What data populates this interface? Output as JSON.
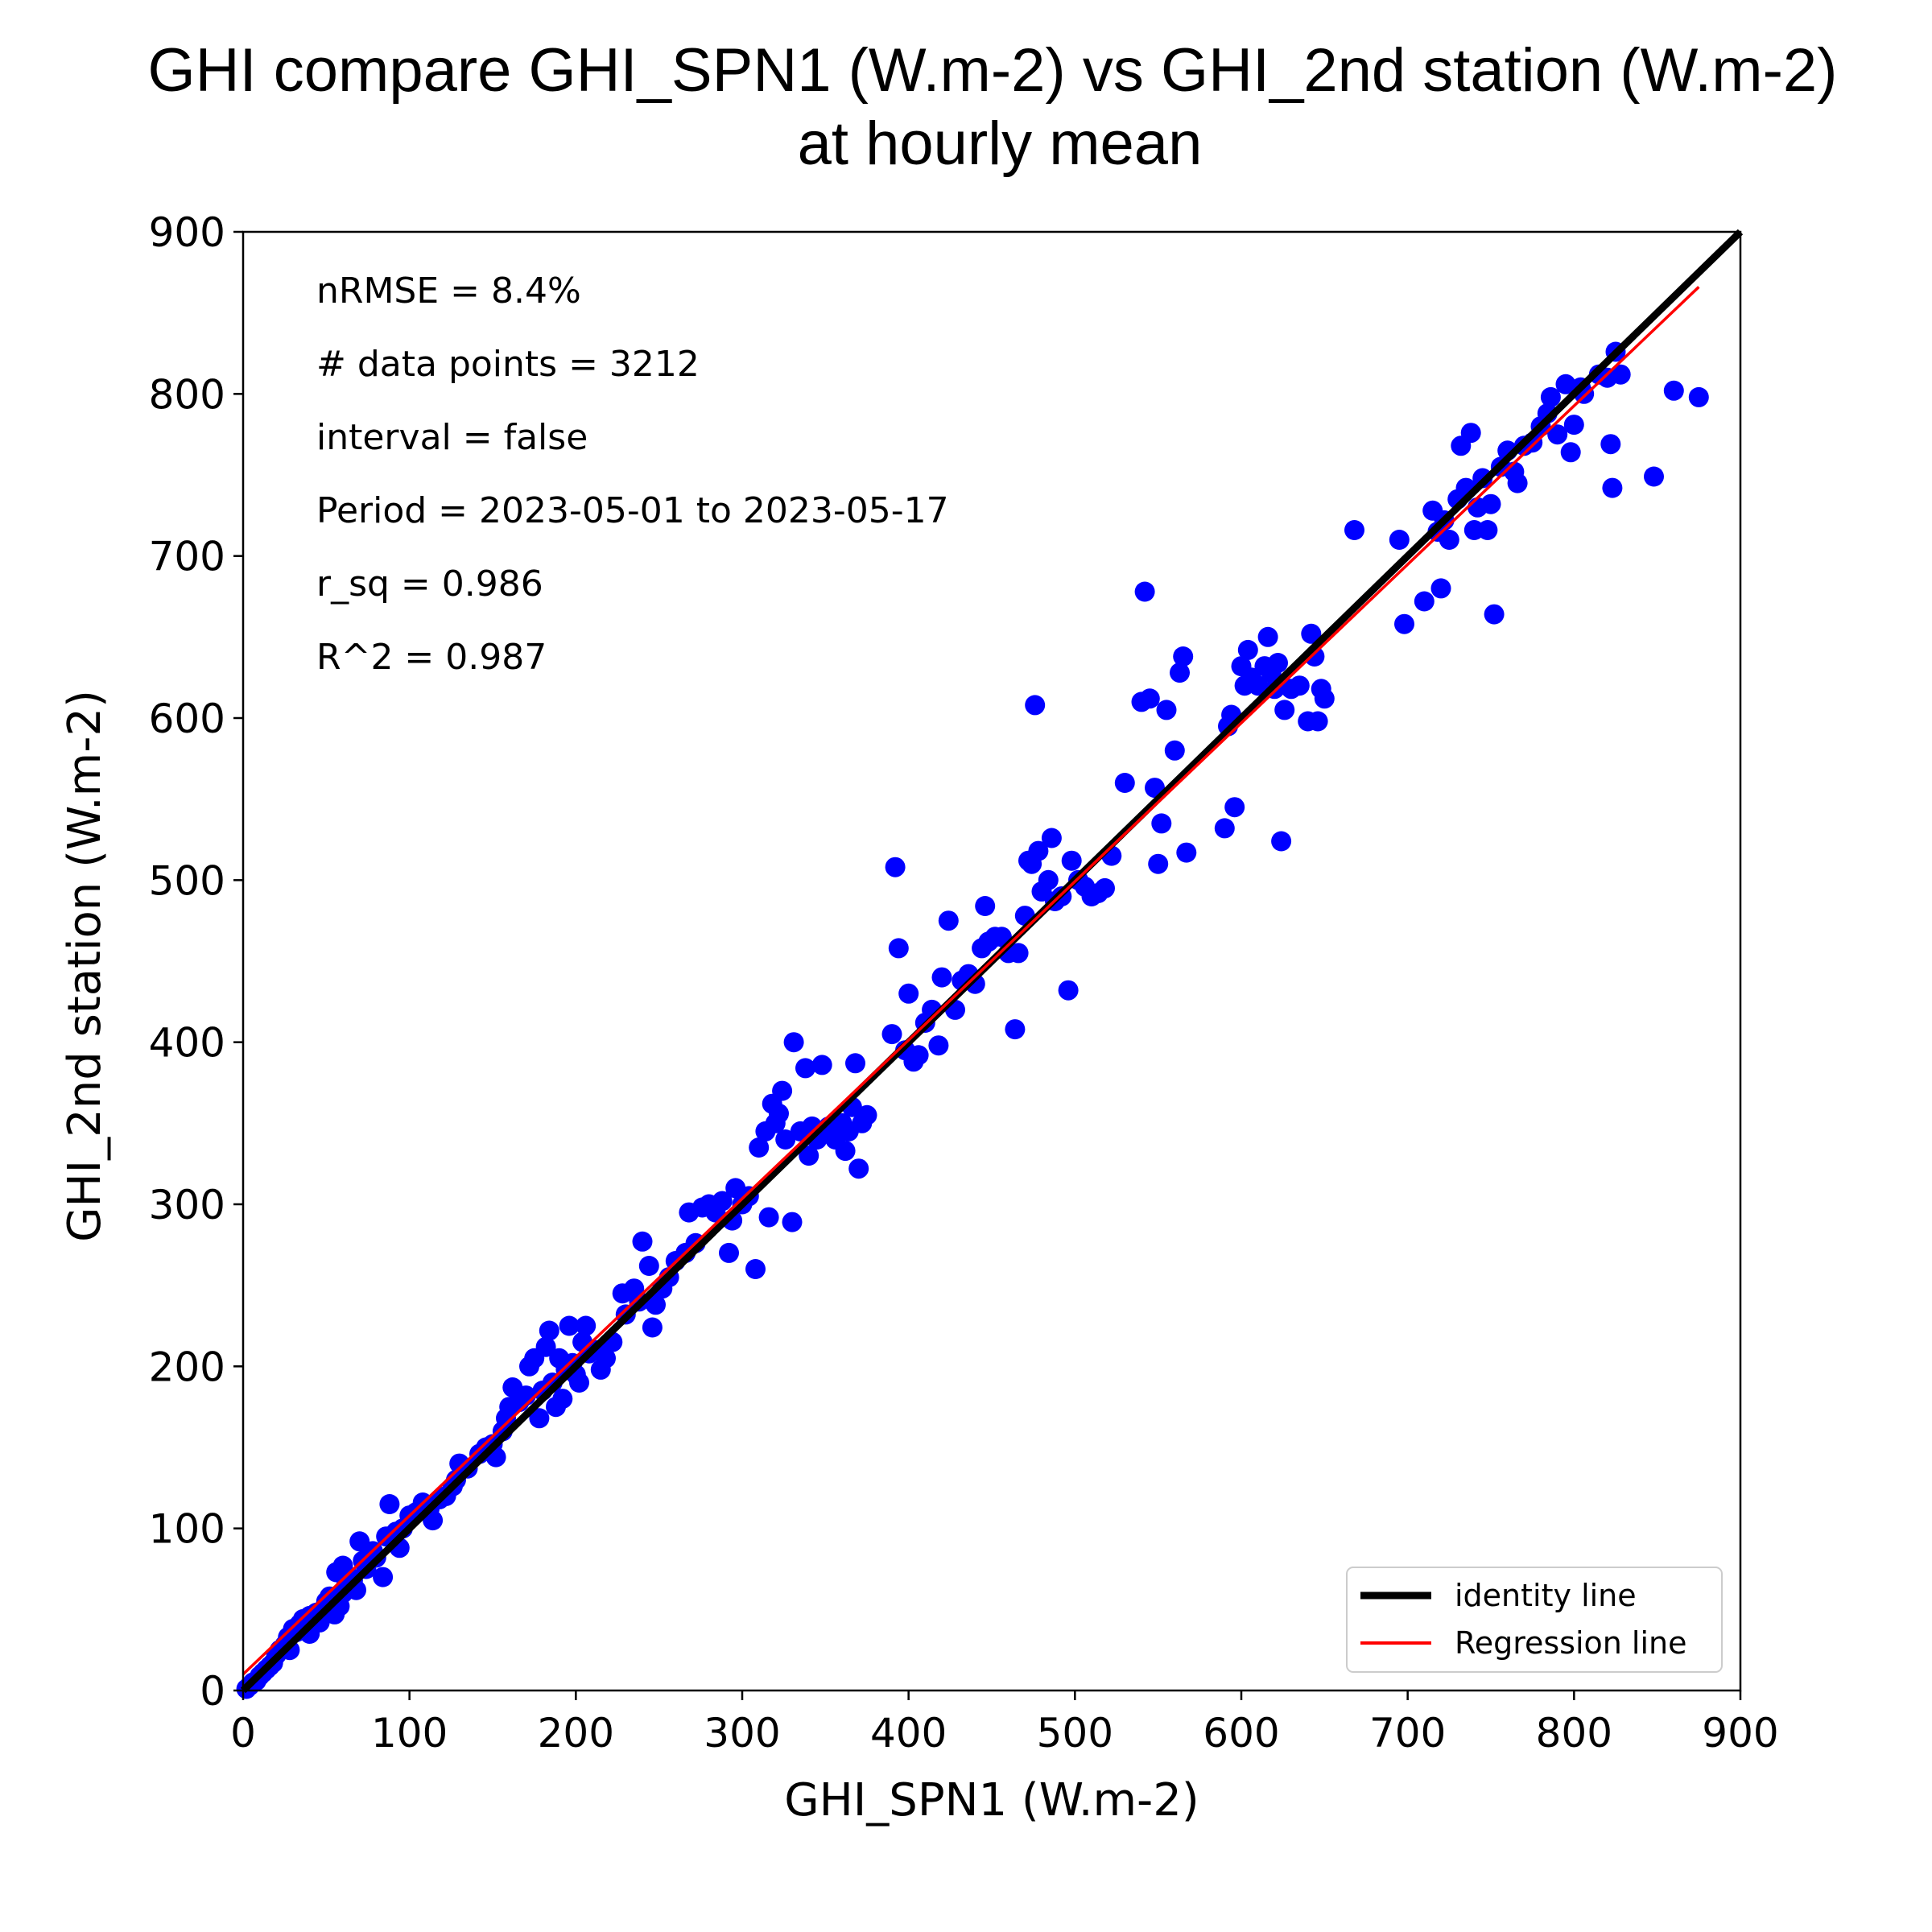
{
  "chart_data": {
    "type": "scatter",
    "title_line1": "GHI compare GHI_SPN1 (W.m-2) vs GHI_2nd station (W.m-2)",
    "title_line2": "at hourly mean",
    "xlabel": "GHI_SPN1 (W.m-2)",
    "ylabel": "GHI_2nd station (W.m-2)",
    "xlim": [
      0,
      900
    ],
    "ylim": [
      0,
      900
    ],
    "x_ticks": [
      "0",
      "100",
      "200",
      "300",
      "400",
      "500",
      "600",
      "700",
      "800",
      "900"
    ],
    "y_ticks": [
      "0",
      "100",
      "200",
      "300",
      "400",
      "500",
      "600",
      "700",
      "800",
      "900"
    ],
    "stats": [
      "nRMSE = 8.4%",
      "# data points = 3212",
      "interval = false",
      "Period = 2023-05-01 to 2023-05-17",
      "r_sq = 0.986",
      "R^2 = 0.987"
    ],
    "legend": {
      "position": "lower-right",
      "identity_label": "identity line",
      "regression_label": "Regression line"
    },
    "colors": {
      "points": "#0000ff",
      "identity": "#000000",
      "regression": "#ff0000"
    },
    "identity_line": [
      [
        0,
        0
      ],
      [
        900,
        900
      ]
    ],
    "regression_line": [
      [
        0,
        10
      ],
      [
        875,
        866
      ]
    ],
    "points": [
      [
        2,
        1
      ],
      [
        4,
        3
      ],
      [
        6,
        5
      ],
      [
        8,
        6
      ],
      [
        10,
        9
      ],
      [
        12,
        11
      ],
      [
        14,
        13
      ],
      [
        16,
        15
      ],
      [
        18,
        17
      ],
      [
        20,
        22
      ],
      [
        22,
        25
      ],
      [
        25,
        28
      ],
      [
        27,
        33
      ],
      [
        28,
        25
      ],
      [
        30,
        38
      ],
      [
        32,
        36
      ],
      [
        34,
        41
      ],
      [
        36,
        44
      ],
      [
        38,
        40
      ],
      [
        40,
        46
      ],
      [
        40,
        35
      ],
      [
        44,
        48
      ],
      [
        46,
        42
      ],
      [
        48,
        50
      ],
      [
        50,
        55
      ],
      [
        52,
        58
      ],
      [
        55,
        47
      ],
      [
        56,
        73
      ],
      [
        58,
        52
      ],
      [
        60,
        77
      ],
      [
        60,
        60
      ],
      [
        62,
        65
      ],
      [
        64,
        70
      ],
      [
        66,
        68
      ],
      [
        68,
        62
      ],
      [
        70,
        92
      ],
      [
        72,
        80
      ],
      [
        74,
        75
      ],
      [
        76,
        84
      ],
      [
        78,
        86
      ],
      [
        80,
        82
      ],
      [
        84,
        70
      ],
      [
        86,
        95
      ],
      [
        88,
        115
      ],
      [
        92,
        98
      ],
      [
        94,
        88
      ],
      [
        96,
        100
      ],
      [
        100,
        108
      ],
      [
        104,
        110
      ],
      [
        108,
        116
      ],
      [
        112,
        112
      ],
      [
        114,
        105
      ],
      [
        118,
        118
      ],
      [
        122,
        120
      ],
      [
        126,
        126
      ],
      [
        128,
        130
      ],
      [
        130,
        140
      ],
      [
        135,
        137
      ],
      [
        142,
        146
      ],
      [
        146,
        150
      ],
      [
        150,
        152
      ],
      [
        152,
        144
      ],
      [
        156,
        160
      ],
      [
        158,
        168
      ],
      [
        160,
        175
      ],
      [
        162,
        187
      ],
      [
        166,
        178
      ],
      [
        170,
        182
      ],
      [
        172,
        200
      ],
      [
        175,
        205
      ],
      [
        178,
        168
      ],
      [
        180,
        185
      ],
      [
        182,
        212
      ],
      [
        184,
        222
      ],
      [
        186,
        190
      ],
      [
        188,
        175
      ],
      [
        190,
        205
      ],
      [
        192,
        180
      ],
      [
        194,
        198
      ],
      [
        196,
        225
      ],
      [
        198,
        202
      ],
      [
        200,
        195
      ],
      [
        202,
        190
      ],
      [
        204,
        215
      ],
      [
        206,
        225
      ],
      [
        208,
        208
      ],
      [
        212,
        210
      ],
      [
        215,
        198
      ],
      [
        218,
        205
      ],
      [
        222,
        215
      ],
      [
        228,
        245
      ],
      [
        230,
        232
      ],
      [
        235,
        248
      ],
      [
        238,
        240
      ],
      [
        240,
        277
      ],
      [
        244,
        262
      ],
      [
        246,
        224
      ],
      [
        248,
        238
      ],
      [
        252,
        248
      ],
      [
        256,
        255
      ],
      [
        260,
        265
      ],
      [
        266,
        270
      ],
      [
        268,
        295
      ],
      [
        272,
        276
      ],
      [
        276,
        298
      ],
      [
        280,
        300
      ],
      [
        284,
        295
      ],
      [
        288,
        302
      ],
      [
        292,
        270
      ],
      [
        294,
        290
      ],
      [
        296,
        310
      ],
      [
        300,
        300
      ],
      [
        304,
        305
      ],
      [
        308,
        260
      ],
      [
        310,
        335
      ],
      [
        314,
        345
      ],
      [
        316,
        292
      ],
      [
        318,
        362
      ],
      [
        320,
        350
      ],
      [
        322,
        356
      ],
      [
        324,
        370
      ],
      [
        326,
        340
      ],
      [
        330,
        289
      ],
      [
        331,
        400
      ],
      [
        335,
        345
      ],
      [
        338,
        384
      ],
      [
        340,
        330
      ],
      [
        342,
        348
      ],
      [
        345,
        340
      ],
      [
        348,
        386
      ],
      [
        352,
        348
      ],
      [
        356,
        340
      ],
      [
        360,
        350
      ],
      [
        362,
        333
      ],
      [
        364,
        345
      ],
      [
        366,
        360
      ],
      [
        368,
        387
      ],
      [
        370,
        322
      ],
      [
        372,
        350
      ],
      [
        375,
        355
      ],
      [
        390,
        405
      ],
      [
        392,
        508
      ],
      [
        394,
        458
      ],
      [
        398,
        395
      ],
      [
        400,
        430
      ],
      [
        403,
        388
      ],
      [
        406,
        392
      ],
      [
        410,
        412
      ],
      [
        414,
        420
      ],
      [
        418,
        398
      ],
      [
        420,
        440
      ],
      [
        424,
        475
      ],
      [
        428,
        420
      ],
      [
        432,
        438
      ],
      [
        436,
        442
      ],
      [
        440,
        436
      ],
      [
        444,
        458
      ],
      [
        446,
        484
      ],
      [
        448,
        462
      ],
      [
        452,
        465
      ],
      [
        456,
        465
      ],
      [
        460,
        455
      ],
      [
        464,
        408
      ],
      [
        466,
        455
      ],
      [
        470,
        478
      ],
      [
        472,
        512
      ],
      [
        474,
        510
      ],
      [
        476,
        608
      ],
      [
        478,
        518
      ],
      [
        480,
        493
      ],
      [
        484,
        500
      ],
      [
        486,
        526
      ],
      [
        488,
        487
      ],
      [
        492,
        490
      ],
      [
        496,
        432
      ],
      [
        498,
        512
      ],
      [
        502,
        500
      ],
      [
        506,
        496
      ],
      [
        510,
        490
      ],
      [
        514,
        492
      ],
      [
        518,
        495
      ],
      [
        522,
        515
      ],
      [
        530,
        560
      ],
      [
        540,
        610
      ],
      [
        542,
        678
      ],
      [
        545,
        612
      ],
      [
        548,
        557
      ],
      [
        550,
        510
      ],
      [
        552,
        535
      ],
      [
        555,
        605
      ],
      [
        560,
        580
      ],
      [
        563,
        628
      ],
      [
        565,
        638
      ],
      [
        567,
        517
      ],
      [
        590,
        532
      ],
      [
        592,
        595
      ],
      [
        594,
        602
      ],
      [
        596,
        545
      ],
      [
        600,
        632
      ],
      [
        602,
        620
      ],
      [
        604,
        642
      ],
      [
        606,
        625
      ],
      [
        610,
        620
      ],
      [
        614,
        632
      ],
      [
        616,
        650
      ],
      [
        618,
        628
      ],
      [
        620,
        618
      ],
      [
        622,
        634
      ],
      [
        624,
        524
      ],
      [
        626,
        605
      ],
      [
        630,
        618
      ],
      [
        635,
        620
      ],
      [
        640,
        598
      ],
      [
        642,
        652
      ],
      [
        644,
        638
      ],
      [
        646,
        598
      ],
      [
        648,
        618
      ],
      [
        650,
        612
      ],
      [
        668,
        716
      ],
      [
        695,
        710
      ],
      [
        698,
        658
      ],
      [
        710,
        672
      ],
      [
        715,
        728
      ],
      [
        718,
        715
      ],
      [
        720,
        680
      ],
      [
        722,
        722
      ],
      [
        725,
        710
      ],
      [
        730,
        735
      ],
      [
        732,
        768
      ],
      [
        735,
        742
      ],
      [
        738,
        776
      ],
      [
        740,
        716
      ],
      [
        742,
        730
      ],
      [
        745,
        748
      ],
      [
        748,
        716
      ],
      [
        750,
        732
      ],
      [
        752,
        664
      ],
      [
        756,
        755
      ],
      [
        760,
        765
      ],
      [
        764,
        752
      ],
      [
        766,
        745
      ],
      [
        770,
        768
      ],
      [
        775,
        770
      ],
      [
        780,
        780
      ],
      [
        784,
        788
      ],
      [
        786,
        798
      ],
      [
        790,
        775
      ],
      [
        795,
        806
      ],
      [
        798,
        764
      ],
      [
        800,
        781
      ],
      [
        804,
        804
      ],
      [
        806,
        800
      ],
      [
        815,
        812
      ],
      [
        820,
        810
      ],
      [
        822,
        769
      ],
      [
        823,
        742
      ],
      [
        825,
        826
      ],
      [
        828,
        812
      ],
      [
        848,
        749
      ],
      [
        860,
        802
      ],
      [
        875,
        798
      ]
    ]
  }
}
